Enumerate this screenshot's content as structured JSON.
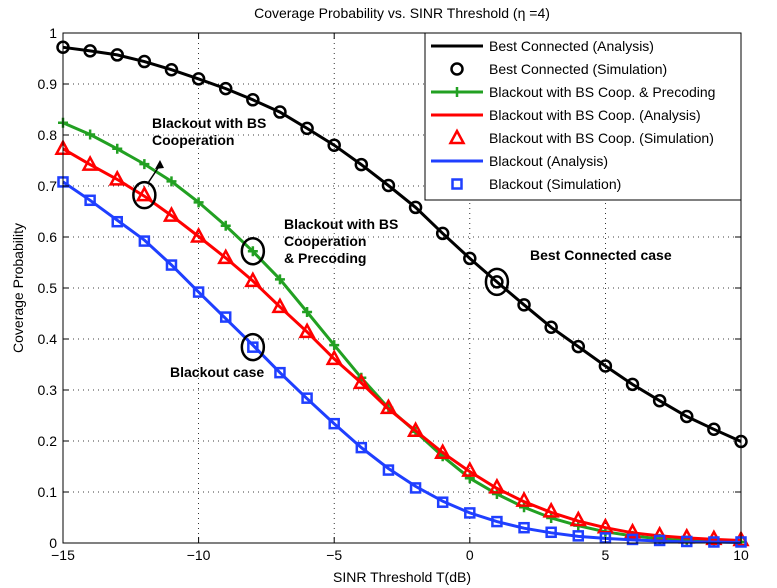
{
  "chart_data": {
    "type": "line",
    "title": "Coverage Probability vs. SINR Threshold (η =4)",
    "xlabel": "SINR Threshold T(dB)",
    "ylabel": "Coverage Probability",
    "xlim": [
      -15,
      10
    ],
    "ylim": [
      0,
      1
    ],
    "xticks": [
      -15,
      -10,
      -5,
      0,
      5,
      10
    ],
    "yticks": [
      0,
      0.1,
      0.2,
      0.3,
      0.4,
      0.5,
      0.6,
      0.7,
      0.8,
      0.9,
      1
    ],
    "grid": true,
    "legend_position": "top-right",
    "x": [
      -15,
      -14,
      -13,
      -12,
      -11,
      -10,
      -9,
      -8,
      -7,
      -6,
      -5,
      -4,
      -3,
      -2,
      -1,
      0,
      1,
      2,
      3,
      4,
      5,
      6,
      7,
      8,
      9,
      10
    ],
    "series": [
      {
        "name": "Best Connected (Analysis)",
        "style": "line",
        "color": "#000000",
        "values": [
          0.972,
          0.965,
          0.957,
          0.944,
          0.928,
          0.91,
          0.891,
          0.869,
          0.845,
          0.813,
          0.78,
          0.742,
          0.701,
          0.658,
          0.607,
          0.558,
          0.512,
          0.467,
          0.423,
          0.385,
          0.347,
          0.311,
          0.279,
          0.248,
          0.223,
          0.199
        ]
      },
      {
        "name": "Best Connected (Simulation)",
        "style": "marker",
        "marker": "circle",
        "color": "#000000",
        "values": [
          0.972,
          0.965,
          0.957,
          0.944,
          0.928,
          0.91,
          0.891,
          0.869,
          0.845,
          0.813,
          0.78,
          0.742,
          0.701,
          0.658,
          0.607,
          0.558,
          0.512,
          0.467,
          0.423,
          0.385,
          0.347,
          0.311,
          0.279,
          0.248,
          0.223,
          0.199
        ]
      },
      {
        "name": "Blackout with BS Coop. & Precoding",
        "style": "line+marker",
        "marker": "plus",
        "color": "#22a022",
        "values": [
          0.824,
          0.801,
          0.773,
          0.743,
          0.709,
          0.668,
          0.622,
          0.572,
          0.517,
          0.453,
          0.388,
          0.324,
          0.265,
          0.218,
          0.17,
          0.127,
          0.096,
          0.07,
          0.049,
          0.034,
          0.022,
          0.014,
          0.008,
          0.005,
          0.003,
          0.002
        ]
      },
      {
        "name": "Blackout with BS Coop. (Analysis)",
        "style": "line",
        "color": "#ff0000",
        "values": [
          0.773,
          0.742,
          0.713,
          0.68,
          0.642,
          0.601,
          0.559,
          0.514,
          0.463,
          0.414,
          0.361,
          0.314,
          0.263,
          0.22,
          0.177,
          0.14,
          0.107,
          0.081,
          0.06,
          0.043,
          0.03,
          0.02,
          0.014,
          0.01,
          0.007,
          0.005
        ]
      },
      {
        "name": "Blackout with BS Coop. (Simulation)",
        "style": "marker",
        "marker": "triangle",
        "color": "#ff0000",
        "values": [
          0.773,
          0.742,
          0.713,
          0.682,
          0.642,
          0.601,
          0.559,
          0.514,
          0.463,
          0.414,
          0.361,
          0.314,
          0.265,
          0.22,
          0.177,
          0.142,
          0.109,
          0.083,
          0.062,
          0.045,
          0.031,
          0.021,
          0.015,
          0.011,
          0.008,
          0.006
        ]
      },
      {
        "name": "Blackout (Analysis)",
        "style": "line",
        "color": "#1f3fff",
        "values": [
          0.708,
          0.672,
          0.633,
          0.594,
          0.545,
          0.492,
          0.44,
          0.388,
          0.334,
          0.283,
          0.234,
          0.187,
          0.146,
          0.111,
          0.082,
          0.059,
          0.042,
          0.029,
          0.02,
          0.013,
          0.009,
          0.006,
          0.004,
          0.002,
          0.002,
          0.001
        ]
      },
      {
        "name": "Blackout (Simulation)",
        "style": "marker",
        "marker": "square",
        "color": "#1f3fff",
        "values": [
          0.708,
          0.672,
          0.63,
          0.592,
          0.545,
          0.492,
          0.443,
          0.384,
          0.334,
          0.284,
          0.234,
          0.187,
          0.143,
          0.108,
          0.08,
          0.059,
          0.042,
          0.03,
          0.021,
          0.014,
          0.01,
          0.007,
          0.005,
          0.003,
          0.002,
          0.002
        ]
      }
    ],
    "annotations": [
      {
        "lines": [
          "Blackout with BS",
          "Cooperation"
        ],
        "circle_x": -12,
        "circle_y": 0.682
      },
      {
        "lines": [
          "Blackout with BS",
          "Cooperation",
          "& Precoding"
        ],
        "circle_x": -8,
        "circle_y": 0.572
      },
      {
        "lines": [
          "Best Connected case"
        ],
        "circle_x": 1,
        "circle_y": 0.512
      },
      {
        "lines": [
          "Blackout case"
        ],
        "circle_x": -8,
        "circle_y": 0.384
      }
    ]
  }
}
